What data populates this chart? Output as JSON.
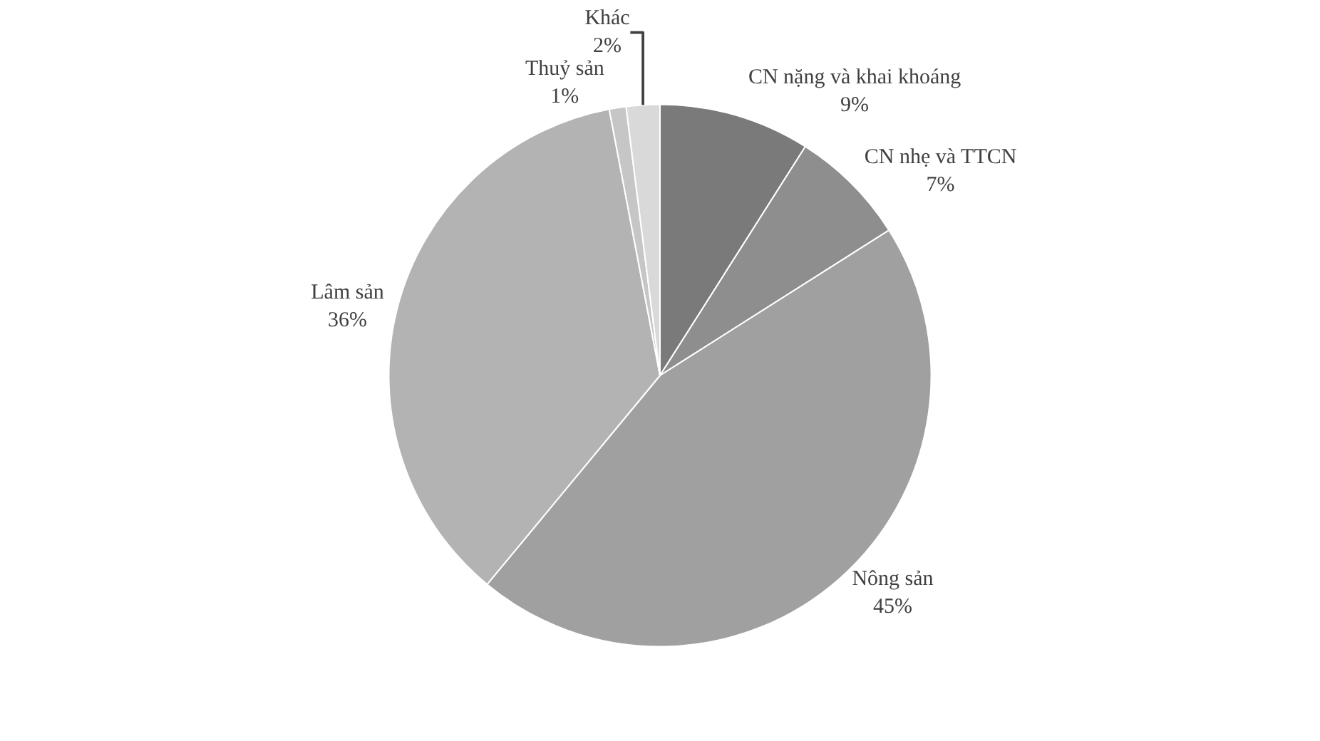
{
  "chart_data": {
    "type": "pie",
    "categories": [
      "CN nặng và khai khoáng",
      "CN nhẹ và TTCN",
      "Nông sản",
      "Lâm sản",
      "Thuỷ sản",
      "Khác"
    ],
    "values": [
      9,
      7,
      45,
      36,
      1,
      2
    ],
    "value_labels": [
      "9%",
      "7%",
      "45%",
      "36%",
      "1%",
      "2%"
    ],
    "colors": [
      "#7a7a7a",
      "#8e8e8e",
      "#a0a0a0",
      "#b3b3b3",
      "#c6c6c6",
      "#d9d9d9"
    ],
    "legend": false
  }
}
